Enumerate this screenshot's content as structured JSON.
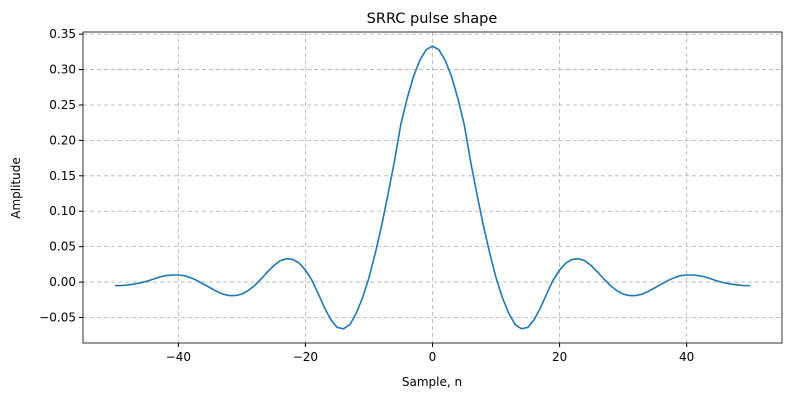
{
  "chart_data": {
    "type": "line",
    "title": "SRRC pulse shape",
    "x_label": "Sample, n",
    "y_label": "Amplitude",
    "x": [
      -50,
      -49,
      -48,
      -47,
      -46,
      -45,
      -44,
      -43,
      -42,
      -41,
      -40,
      -39,
      -38,
      -37,
      -36,
      -35,
      -34,
      -33,
      -32,
      -31,
      -30,
      -29,
      -28,
      -27,
      -26,
      -25,
      -24,
      -23,
      -22,
      -21,
      -20,
      -19,
      -18,
      -17,
      -16,
      -15,
      -14,
      -13,
      -12,
      -11,
      -10,
      -9,
      -8,
      -7,
      -6,
      -5,
      -4,
      -3,
      -2,
      -1,
      0,
      1,
      2,
      3,
      4,
      5,
      6,
      7,
      8,
      9,
      10,
      11,
      12,
      13,
      14,
      15,
      16,
      17,
      18,
      19,
      20,
      21,
      22,
      23,
      24,
      25,
      26,
      27,
      28,
      29,
      30,
      31,
      32,
      33,
      34,
      35,
      36,
      37,
      38,
      39,
      40,
      41,
      42,
      43,
      44,
      45,
      46,
      47,
      48,
      49,
      50
    ],
    "series": [
      {
        "color": "#1f77b4",
        "values": [
          -0.005,
          -0.005,
          -0.004,
          -0.003,
          -0.001,
          0.001,
          0.004,
          0.007,
          0.009,
          0.01,
          0.01,
          0.009,
          0.006,
          0.002,
          -0.003,
          -0.008,
          -0.013,
          -0.017,
          -0.019,
          -0.019,
          -0.017,
          -0.012,
          -0.005,
          0.004,
          0.014,
          0.023,
          0.03,
          0.033,
          0.032,
          0.027,
          0.017,
          0.003,
          -0.016,
          -0.036,
          -0.053,
          -0.064,
          -0.066,
          -0.06,
          -0.044,
          -0.022,
          0.006,
          0.041,
          0.08,
          0.124,
          0.17,
          0.222,
          0.259,
          0.29,
          0.313,
          0.328,
          0.333,
          0.328,
          0.313,
          0.29,
          0.259,
          0.222,
          0.17,
          0.124,
          0.08,
          0.041,
          0.006,
          -0.022,
          -0.044,
          -0.06,
          -0.066,
          -0.064,
          -0.053,
          -0.036,
          -0.016,
          0.003,
          0.017,
          0.027,
          0.032,
          0.033,
          0.03,
          0.023,
          0.014,
          0.004,
          -0.005,
          -0.012,
          -0.017,
          -0.019,
          -0.019,
          -0.017,
          -0.013,
          -0.008,
          -0.003,
          0.002,
          0.006,
          0.009,
          0.01,
          0.01,
          0.009,
          0.007,
          0.004,
          0.001,
          -0.001,
          -0.003,
          -0.004,
          -0.005,
          -0.005
        ]
      }
    ],
    "xlim": [
      -55,
      55
    ],
    "ylim": [
      -0.086,
      0.353
    ],
    "xticks": [
      {
        "value": -40,
        "label": "−40"
      },
      {
        "value": -20,
        "label": "−20"
      },
      0,
      20,
      40
    ],
    "yticks": [
      {
        "value": -0.05,
        "label": "−0.05"
      },
      {
        "value": 0,
        "label": "0.00"
      },
      0.05,
      {
        "value": 0.1,
        "label": "0.10"
      },
      0.15,
      {
        "value": 0.2,
        "label": "0.20"
      },
      0.25,
      {
        "value": 0.3,
        "label": "0.30"
      },
      0.35
    ],
    "grid": true
  }
}
